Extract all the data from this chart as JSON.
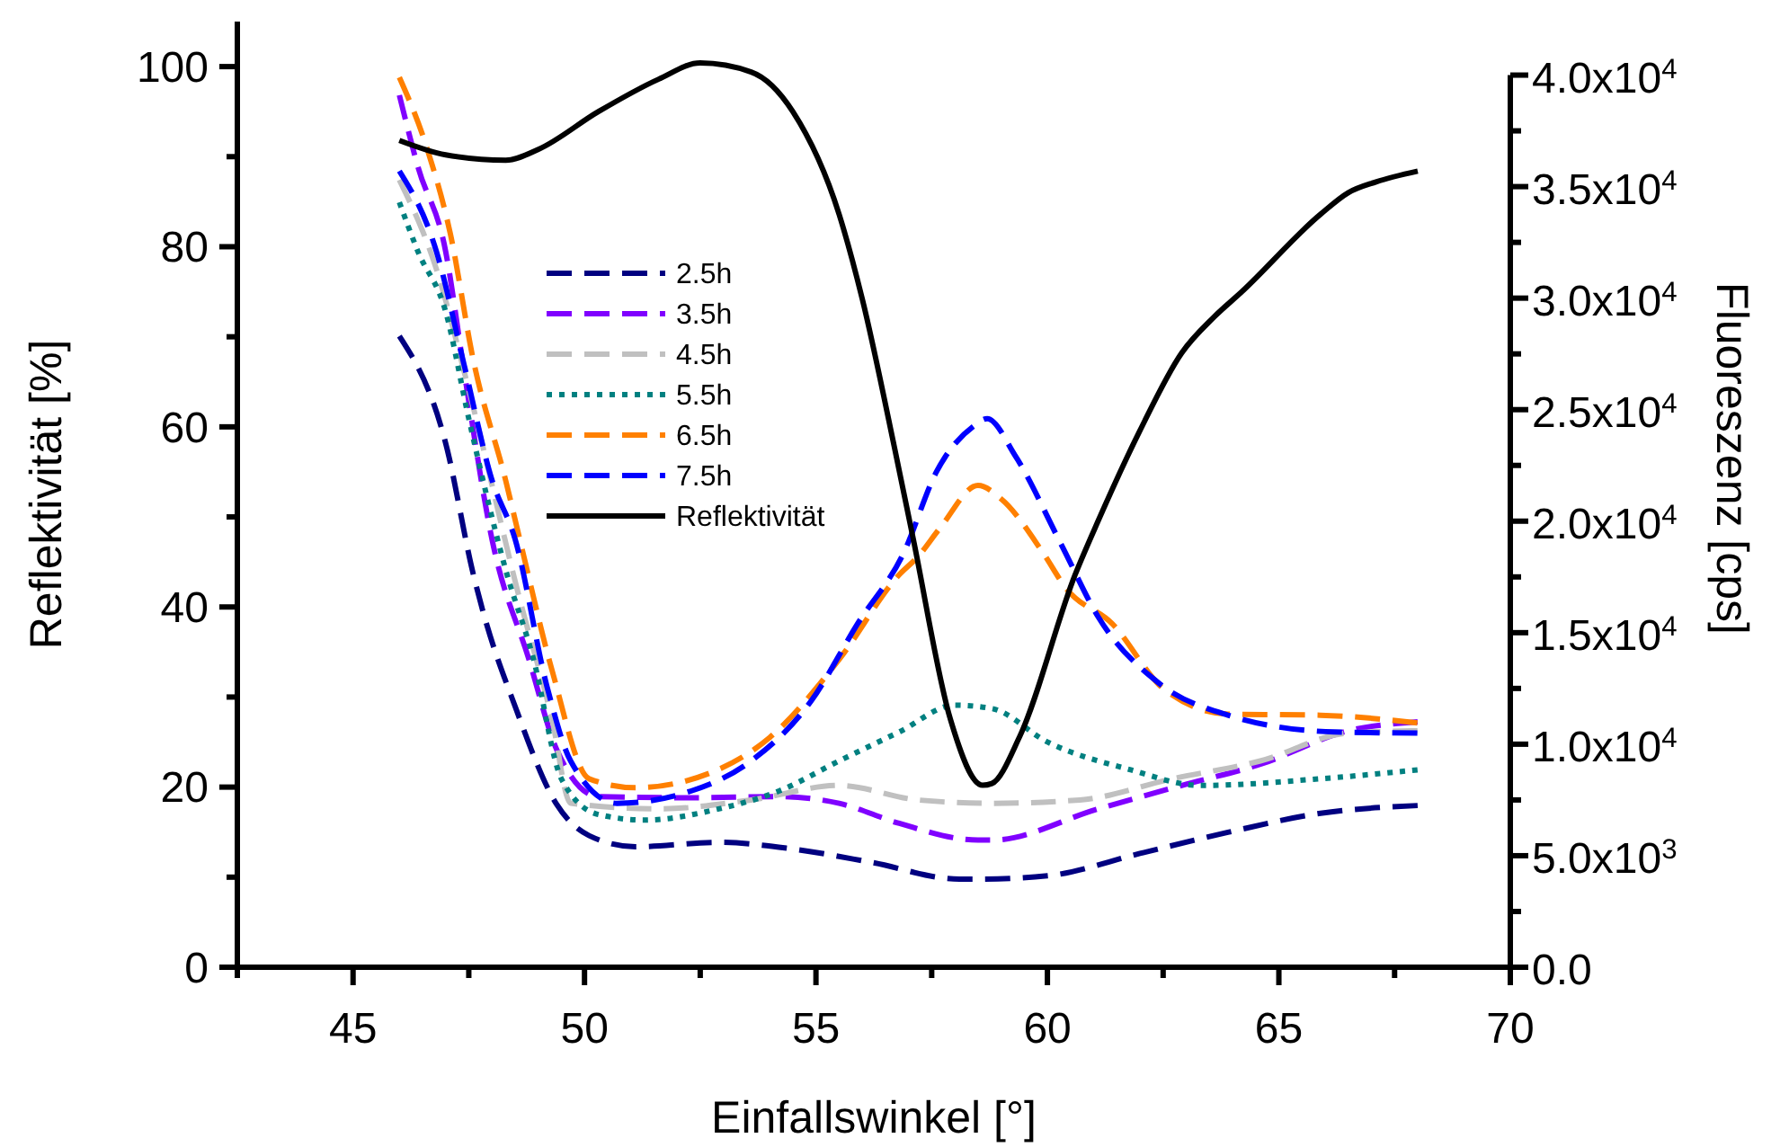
{
  "chart_data": {
    "type": "line",
    "xlabel": "Einfallswinkel [°]",
    "ylabel": "Reflektivität [%]",
    "y2label": "Fluoreszenz [cps]",
    "xlim": [
      42.5,
      70
    ],
    "xticks": [
      {
        "value": 42.5,
        "label": null
      },
      45,
      {
        "value": 47.5,
        "label": null
      },
      50,
      {
        "value": 52.5,
        "label": null
      },
      55,
      {
        "value": 57.5,
        "label": null
      },
      60,
      {
        "value": 62.5,
        "label": null
      },
      65,
      {
        "value": 67.5,
        "label": null
      },
      70
    ],
    "ylim": [
      0,
      105
    ],
    "yticks": [
      0,
      {
        "value": 10,
        "label": null
      },
      20,
      {
        "value": 30,
        "label": null
      },
      40,
      {
        "value": 50,
        "label": null
      },
      60,
      {
        "value": 70,
        "label": null
      },
      80,
      {
        "value": 90,
        "label": null
      },
      100
    ],
    "y2lim": [
      0,
      42400
    ],
    "y2ticks": [
      {
        "value": 0,
        "label": "0.0"
      },
      {
        "value": 2500,
        "label": null
      },
      {
        "value": 5000,
        "label": "5.0x10$^{3}$"
      },
      {
        "value": 7500,
        "label": null
      },
      {
        "value": 10000,
        "label": "1.0x10$^{4}$"
      },
      {
        "value": 12500,
        "label": null
      },
      {
        "value": 15000,
        "label": "1.5x10$^{4}$"
      },
      {
        "value": 17500,
        "label": null
      },
      {
        "value": 20000,
        "label": "2.0x10$^{4}$"
      },
      {
        "value": 22500,
        "label": null
      },
      {
        "value": 25000,
        "label": "2.5x10$^{4}$"
      },
      {
        "value": 27500,
        "label": null
      },
      {
        "value": 30000,
        "label": "3.0x10$^{4}$"
      },
      {
        "value": 32500,
        "label": null
      },
      {
        "value": 35000,
        "label": "3.5x10$^{4}$"
      },
      {
        "value": 37500,
        "label": null
      },
      {
        "value": 40000,
        "label": "4.0x10$^{4}$"
      }
    ],
    "grid": false,
    "legend": "top left",
    "marker": "none",
    "series": [
      {
        "name": "2.5h",
        "color": "#000080",
        "axis": "y2",
        "line_style": "dashed",
        "x": [
          46.0,
          47.0,
          47.6,
          47.8,
          48.5,
          49.4,
          50.1,
          51.1,
          52.9,
          54.5,
          56.2,
          58.1,
          58.5,
          60.0,
          62.0,
          63.9,
          65.9,
          68.0
        ],
        "values": [
          28300,
          23500,
          17600,
          16000,
          11700,
          7300,
          5900,
          5400,
          5600,
          5300,
          4700,
          3950,
          3950,
          4100,
          5100,
          6050,
          6900,
          7250
        ]
      },
      {
        "name": "3.5h",
        "color": "#8000ff",
        "axis": "y2",
        "line_style": "dashed",
        "x": [
          46.0,
          46.4,
          47.0,
          47.4,
          48.0,
          48.8,
          49.4,
          50.3,
          52.3,
          54.2,
          55.5,
          56.8,
          58.5,
          58.8,
          61.1,
          62.9,
          64.6,
          66.5,
          68.0
        ],
        "values": [
          39100,
          35900,
          32100,
          26700,
          19200,
          13800,
          9750,
          7650,
          7600,
          7650,
          7350,
          6450,
          5700,
          5700,
          7100,
          8150,
          9100,
          10600,
          11000
        ]
      },
      {
        "name": "4.5h",
        "color": "#c0c0c0",
        "axis": "y2",
        "line_style": "dashed",
        "x": [
          46.0,
          46.8,
          47.5,
          48.6,
          49.3,
          49.7,
          51.6,
          53.6,
          55.5,
          57.2,
          58.8,
          60.7,
          62.7,
          64.6,
          66.5,
          68.0
        ],
        "values": [
          35300,
          31300,
          25900,
          16500,
          11100,
          7350,
          7100,
          7500,
          8150,
          7500,
          7350,
          7500,
          8450,
          9250,
          10500,
          10600
        ]
      },
      {
        "name": "5.5h",
        "color": "#008080",
        "axis": "y2",
        "line_style": "dotted",
        "x": [
          46.0,
          46.4,
          47.0,
          47.5,
          48.3,
          48.9,
          49.5,
          50.3,
          51.3,
          52.9,
          54.2,
          55.5,
          56.8,
          58.0,
          58.8,
          60.0,
          61.8,
          63.3,
          65.9,
          68.0
        ],
        "values": [
          34300,
          32100,
          29400,
          24600,
          17800,
          13800,
          8450,
          6850,
          6600,
          7100,
          7900,
          9250,
          10550,
          11750,
          11600,
          10100,
          8850,
          8150,
          8450,
          8850
        ]
      },
      {
        "name": "6.5h",
        "color": "#ff8000",
        "axis": "y2",
        "line_style": "dashed",
        "x": [
          46.0,
          46.6,
          47.1,
          47.6,
          48.3,
          48.6,
          49.3,
          50.1,
          51.1,
          52.7,
          54.0,
          55.5,
          56.8,
          57.2,
          57.7,
          58.5,
          59.0,
          59.9,
          60.4,
          61.4,
          62.5,
          63.9,
          65.9,
          68.0
        ],
        "values": [
          39900,
          36700,
          32900,
          27200,
          21800,
          19200,
          13300,
          8450,
          8050,
          8700,
          10300,
          13800,
          17600,
          18400,
          19750,
          21600,
          21000,
          18600,
          17000,
          15400,
          12500,
          11350,
          11300,
          10950
        ]
      },
      {
        "name": "7.5h",
        "color": "#0000ff",
        "axis": "y2",
        "line_style": "dashed",
        "x": [
          46.0,
          46.8,
          47.4,
          48.0,
          48.5,
          49.2,
          49.7,
          50.7,
          52.3,
          53.6,
          54.9,
          55.9,
          56.9,
          57.6,
          58.4,
          58.7,
          59.3,
          60.3,
          61.1,
          62.4,
          63.9,
          66.2,
          68.0
        ],
        "values": [
          35700,
          32100,
          27000,
          21850,
          19200,
          12500,
          9250,
          7350,
          7900,
          9250,
          11950,
          15400,
          18600,
          22200,
          24250,
          24600,
          22950,
          18950,
          15700,
          12750,
          11300,
          10550,
          10500
        ]
      },
      {
        "name": "Reflektivität",
        "color": "#000000",
        "line_style": "solid",
        "x": [
          46.0,
          47.0,
          48.3,
          49.0,
          50.3,
          51.6,
          52.5,
          53.6,
          54.5,
          55.5,
          56.0,
          56.7,
          57.1,
          57.9,
          58.6,
          58.8,
          59.4,
          60.6,
          61.1,
          62.0,
          62.9,
          63.6,
          64.2,
          65.9,
          66.5,
          67.1,
          68.0
        ],
        "values": [
          91.8,
          90.2,
          89.6,
          90.8,
          95,
          98.6,
          100.4,
          99.4,
          95,
          83.6,
          74.2,
          57.6,
          47.6,
          27.6,
          20.2,
          20.4,
          25.6,
          43.6,
          49.6,
          59.6,
          68.2,
          72.2,
          75,
          83.6,
          86,
          87.2,
          88.4
        ]
      }
    ]
  }
}
